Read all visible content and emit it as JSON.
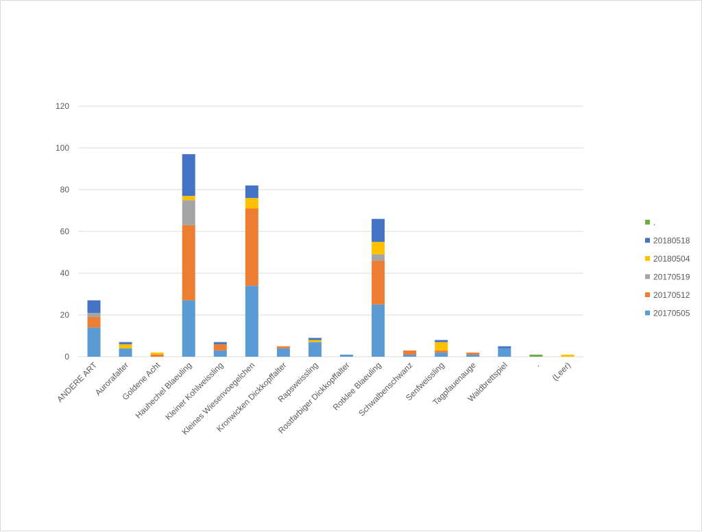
{
  "chart_data": {
    "type": "bar",
    "stacked": true,
    "title": "",
    "xlabel": "",
    "ylabel": "",
    "ylim": [
      0,
      120
    ],
    "yticks": [
      0,
      20,
      40,
      60,
      80,
      100,
      120
    ],
    "grid": true,
    "legend_position": "right",
    "categories": [
      "ANDERE ART",
      "Aurorafalter",
      "Goldene Acht",
      "Hauhechel Blaeuling",
      "Kleiner Kohlweissling",
      "Kleines Wiesenvoegelchen",
      "Kronwicken Dickkopffalter",
      "Rapsweissling",
      "Rostfarbiger Dickkopffalter",
      "Rotklee Blaeuling",
      "Schwalbenschwanz",
      "Senfweissling",
      "Tagpfauenauge",
      "Waldbrettspiel",
      ".",
      "(Leer)"
    ],
    "series": [
      {
        "name": "20170505",
        "color": "#5b9bd5",
        "values": [
          14,
          4,
          0,
          27,
          3,
          34,
          4,
          7,
          1,
          25,
          1,
          2,
          1,
          4,
          0,
          0
        ]
      },
      {
        "name": "20170512",
        "color": "#ed7d31",
        "values": [
          5,
          0,
          1,
          36,
          3,
          37,
          1,
          0,
          0,
          21,
          2,
          1,
          1,
          0,
          0,
          0
        ]
      },
      {
        "name": "20170519",
        "color": "#a5a5a5",
        "values": [
          2,
          0,
          0,
          12,
          0,
          0,
          0,
          0,
          0,
          3,
          0,
          0,
          0,
          0,
          0,
          0
        ]
      },
      {
        "name": "20180504",
        "color": "#ffc000",
        "values": [
          0,
          2,
          1,
          2,
          0,
          5,
          0,
          1,
          0,
          6,
          0,
          4,
          0,
          0,
          0,
          1
        ]
      },
      {
        "name": "20180518",
        "color": "#4472c4",
        "values": [
          6,
          1,
          0,
          20,
          1,
          6,
          0,
          1,
          0,
          11,
          0,
          1,
          0,
          1,
          0,
          0
        ]
      },
      {
        "name": ".",
        "color": "#70ad47",
        "values": [
          0,
          0,
          0,
          0,
          0,
          0,
          0,
          0,
          0,
          0,
          0,
          0,
          0,
          0,
          1,
          0
        ]
      }
    ]
  }
}
